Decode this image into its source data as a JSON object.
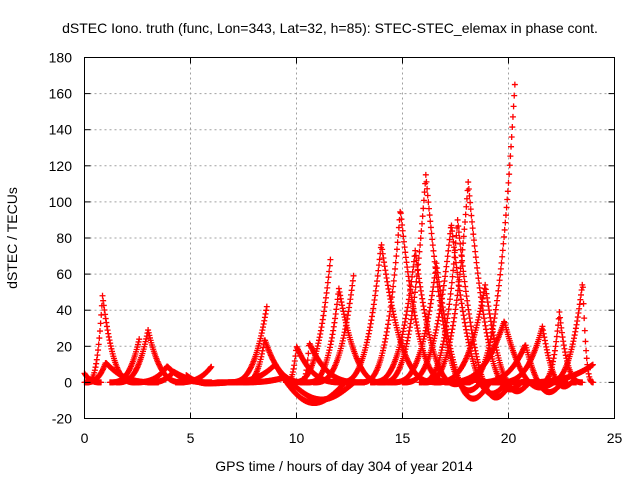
{
  "chart_data": {
    "type": "scatter",
    "title": "dSTEC Iono. truth (func, Lon=343, Lat=32, h=85): STEC-STEC_elemax in phase cont.",
    "xlabel": "GPS time / hours of day 304 of year 2014",
    "ylabel": "dSTEC  / TECUs",
    "xlim": [
      0,
      25
    ],
    "ylim": [
      -20,
      180
    ],
    "xticks": [
      0,
      5,
      10,
      15,
      20,
      25
    ],
    "yticks": [
      -20,
      0,
      20,
      40,
      60,
      80,
      100,
      120,
      140,
      160,
      180
    ],
    "grid": true,
    "marker": "+",
    "color": "#ff0000",
    "arcs": [
      {
        "start": 0.0,
        "peak_time": 0.0,
        "peak": 5,
        "end": 0.8,
        "min": 0
      },
      {
        "start": 0.1,
        "peak_time": 0.85,
        "peak": 48,
        "end": 2.4,
        "min": 0
      },
      {
        "start": 0.0,
        "peak_time": 1.0,
        "peak": 11,
        "end": 3.5,
        "min": 0
      },
      {
        "start": 1.2,
        "peak_time": 2.6,
        "peak": 25,
        "end": 2.6,
        "min": 0
      },
      {
        "start": 1.5,
        "peak_time": 3.0,
        "peak": 29,
        "end": 4.7,
        "min": 0
      },
      {
        "start": 2.3,
        "peak_time": 3.9,
        "peak": 9,
        "end": 6.0,
        "min": 0
      },
      {
        "start": 3.0,
        "peak_time": 4.2,
        "peak": 6,
        "end": 7.2,
        "min": -1
      },
      {
        "start": 4.3,
        "peak_time": 6.0,
        "peak": 9,
        "end": 6.0,
        "min": 0
      },
      {
        "start": 4.8,
        "peak_time": 4.8,
        "peak": 4,
        "end": 6.5,
        "min": -1
      },
      {
        "start": 6.8,
        "peak_time": 8.6,
        "peak": 42,
        "end": 8.6,
        "min": -1
      },
      {
        "start": 6.5,
        "peak_time": 9.0,
        "peak": 10,
        "end": 12.8,
        "min": -13
      },
      {
        "start": 7.2,
        "peak_time": 9.5,
        "peak": 3,
        "end": 13.2,
        "min": -10
      },
      {
        "start": 7.5,
        "peak_time": 8.5,
        "peak": 24,
        "end": 10.5,
        "min": 0
      },
      {
        "start": 9.5,
        "peak_time": 10.0,
        "peak": 20,
        "end": 12.2,
        "min": 0
      },
      {
        "start": 9.8,
        "peak_time": 11.6,
        "peak": 68,
        "end": 11.6,
        "min": 0
      },
      {
        "start": 10.2,
        "peak_time": 10.6,
        "peak": 22,
        "end": 13.1,
        "min": 0
      },
      {
        "start": 10.5,
        "peak_time": 12.0,
        "peak": 52,
        "end": 14.5,
        "min": -2
      },
      {
        "start": 10.8,
        "peak_time": 12.7,
        "peak": 60,
        "end": 12.7,
        "min": 0
      },
      {
        "start": 12.0,
        "peak_time": 14.0,
        "peak": 77,
        "end": 16.8,
        "min": -1
      },
      {
        "start": 13.0,
        "peak_time": 14.9,
        "peak": 96,
        "end": 17.5,
        "min": -2
      },
      {
        "start": 13.5,
        "peak_time": 15.6,
        "peak": 73,
        "end": 18.2,
        "min": -5
      },
      {
        "start": 14.0,
        "peak_time": 16.1,
        "peak": 115,
        "end": 19.1,
        "min": -13
      },
      {
        "start": 14.5,
        "peak_time": 16.6,
        "peak": 66,
        "end": 19.5,
        "min": -16
      },
      {
        "start": 15.0,
        "peak_time": 17.3,
        "peak": 88,
        "end": 20.3,
        "min": -14
      },
      {
        "start": 15.8,
        "peak_time": 17.6,
        "peak": 90,
        "end": 20.5,
        "min": -17
      },
      {
        "start": 16.0,
        "peak_time": 18.1,
        "peak": 111,
        "end": 21.0,
        "min": -12
      },
      {
        "start": 16.5,
        "peak_time": 18.9,
        "peak": 54,
        "end": 21.3,
        "min": -10
      },
      {
        "start": 17.0,
        "peak_time": 19.8,
        "peak": 34,
        "end": 22.5,
        "min": -6
      },
      {
        "start": 17.9,
        "peak_time": 20.3,
        "peak": 165,
        "end": 20.3,
        "min": -10
      },
      {
        "start": 18.5,
        "peak_time": 20.8,
        "peak": 21,
        "end": 22.8,
        "min": -8
      },
      {
        "start": 19.5,
        "peak_time": 21.6,
        "peak": 31,
        "end": 23.2,
        "min": -5
      },
      {
        "start": 21.5,
        "peak_time": 22.4,
        "peak": 39,
        "end": 23.5,
        "min": 0
      },
      {
        "start": 21.8,
        "peak_time": 23.5,
        "peak": 56,
        "end": 24.0,
        "min": 0
      },
      {
        "start": 20.5,
        "peak_time": 24.0,
        "peak": 10,
        "end": 24.0,
        "min": 0
      }
    ]
  }
}
